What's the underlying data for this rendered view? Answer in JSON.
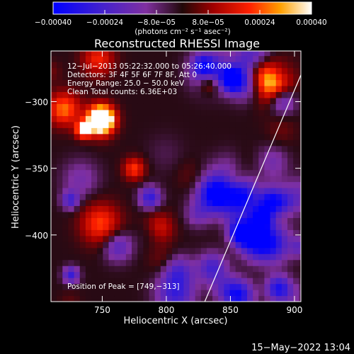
{
  "chart_data": {
    "type": "heatmap",
    "title": "Reconstructed RHESSI Image",
    "xlabel": "Heliocentric X (arcsec)",
    "ylabel": "Heliocentric Y (arcsec)",
    "xlim": [
      710,
      905
    ],
    "ylim": [
      -450,
      -262
    ],
    "x_ticks": [
      750,
      800,
      850,
      900
    ],
    "x_tick_labels": [
      "750",
      "800",
      "850",
      "900"
    ],
    "y_ticks": [
      -300,
      -350,
      -400
    ],
    "y_tick_labels": [
      "−300",
      "−350",
      "−400"
    ],
    "colorbar": {
      "range": [
        -0.0004,
        0.0004
      ],
      "ticks": [
        -0.0004,
        -0.00024,
        -8e-05,
        8e-05,
        0.00024,
        0.0004
      ],
      "tick_labels": [
        "−0.00040",
        "−0.00024",
        "−8.0e−05",
        "8.0e−05",
        "0.00024",
        "0.00040"
      ],
      "units_label": "(photons cm⁻² s⁻¹ asec⁻²)",
      "colormap": "blue-purple-red-yellow-white"
    },
    "info_lines": [
      "12−Jul−2013 05:22:32.000 to 05:26:40.000",
      "Detectors: 3F 4F 5F 6F 7F 8F, Att 0",
      "Energy Range: 25.0 − 50.0 keV",
      "Clean    Total counts: 6.36E+03"
    ],
    "peak_label": "Position of Peak = [749,−313]",
    "peak": [
      749,
      -313
    ],
    "limb_line": [
      [
        830,
        -450
      ],
      [
        905,
        -280
      ]
    ]
  },
  "footer_date": "15−May−2022 13:04",
  "colors": {
    "background": "#000000",
    "text": "#ffffff"
  }
}
